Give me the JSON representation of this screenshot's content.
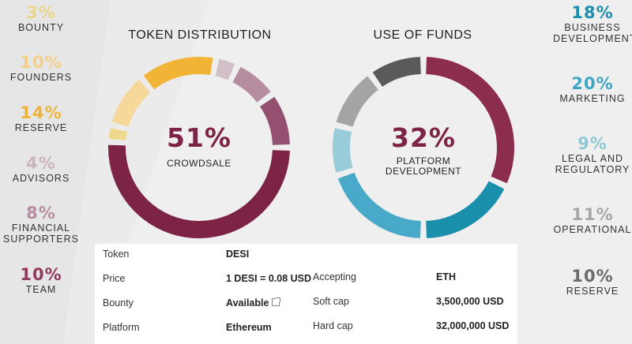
{
  "chart_data": [
    {
      "type": "pie",
      "title": "TOKEN DISTRIBUTION",
      "center_value": "51%",
      "center_label": "CROWDSALE",
      "slices": [
        {
          "label": "CROWDSALE",
          "value": 51,
          "color": "#7d2446"
        },
        {
          "label": "BOUNTY",
          "value": 3,
          "color": "#efd98f"
        },
        {
          "label": "FOUNDERS",
          "value": 10,
          "color": "#f6d89a"
        },
        {
          "label": "RESERVE",
          "value": 14,
          "color": "#f2b437"
        },
        {
          "label": "ADVISORS",
          "value": 4,
          "color": "#d3bfc7"
        },
        {
          "label": "FINANCIAL SUPPORTERS",
          "value": 8,
          "color": "#b68ca0"
        },
        {
          "label": "TEAM",
          "value": 10,
          "color": "#94506f"
        }
      ]
    },
    {
      "type": "pie",
      "title": "USE OF FUNDS",
      "center_value": "32%",
      "center_label": "PLATFORM\nDEVELOPMENT",
      "slices": [
        {
          "label": "PLATFORM DEVELOPMENT",
          "value": 32,
          "color": "#8c2c4f"
        },
        {
          "label": "BUSINESS DEVELOPMENT",
          "value": 18,
          "color": "#1a8fac"
        },
        {
          "label": "MARKETING",
          "value": 20,
          "color": "#48aac8"
        },
        {
          "label": "LEGAL AND REGULATORY",
          "value": 9,
          "color": "#98ccd9"
        },
        {
          "label": "OPERATIONAL",
          "value": 11,
          "color": "#a4a4a4"
        },
        {
          "label": "RESERVE",
          "value": 10,
          "color": "#5a5a5a"
        }
      ]
    }
  ],
  "legend_left": [
    {
      "pct": "3%",
      "label": "BOUNTY",
      "color": "#ecd58a"
    },
    {
      "pct": "10%",
      "label": "FOUNDERS",
      "color": "#f4cf8a"
    },
    {
      "pct": "14%",
      "label": "RESERVE",
      "color": "#f1b43a"
    },
    {
      "pct": "4%",
      "label": "ADVISORS",
      "color": "#cdb4bf"
    },
    {
      "pct": "8%",
      "label": "FINANCIAL\nSUPPORTERS",
      "color": "#b68ca0"
    },
    {
      "pct": "10%",
      "label": "TEAM",
      "color": "#8f3a5e"
    }
  ],
  "legend_right": [
    {
      "pct": "18%",
      "label": "BUSINESS\nDEVELOPMENT",
      "color": "#1c8eab"
    },
    {
      "pct": "20%",
      "label": "MARKETING",
      "color": "#3ea6c4"
    },
    {
      "pct": "9%",
      "label": "LEGAL AND\nREGULATORY",
      "color": "#8fc9d7"
    },
    {
      "pct": "11%",
      "label": "OPERATIONAL",
      "color": "#a6a6a6"
    },
    {
      "pct": "10%",
      "label": "RESERVE",
      "color": "#6b6b6b"
    }
  ],
  "table": {
    "left": [
      {
        "key": "Token",
        "value": "DESI"
      },
      {
        "key": "Price",
        "value": "1 DESI = 0.08 USD"
      },
      {
        "key": "Bounty",
        "value": "Available"
      },
      {
        "key": "Platform",
        "value": "Ethereum"
      }
    ],
    "right": [
      {
        "key": "Accepting",
        "value": "ETH"
      },
      {
        "key": "Soft cap",
        "value": "3,500,000 USD"
      },
      {
        "key": "Hard cap",
        "value": "32,000,000 USD"
      }
    ]
  }
}
